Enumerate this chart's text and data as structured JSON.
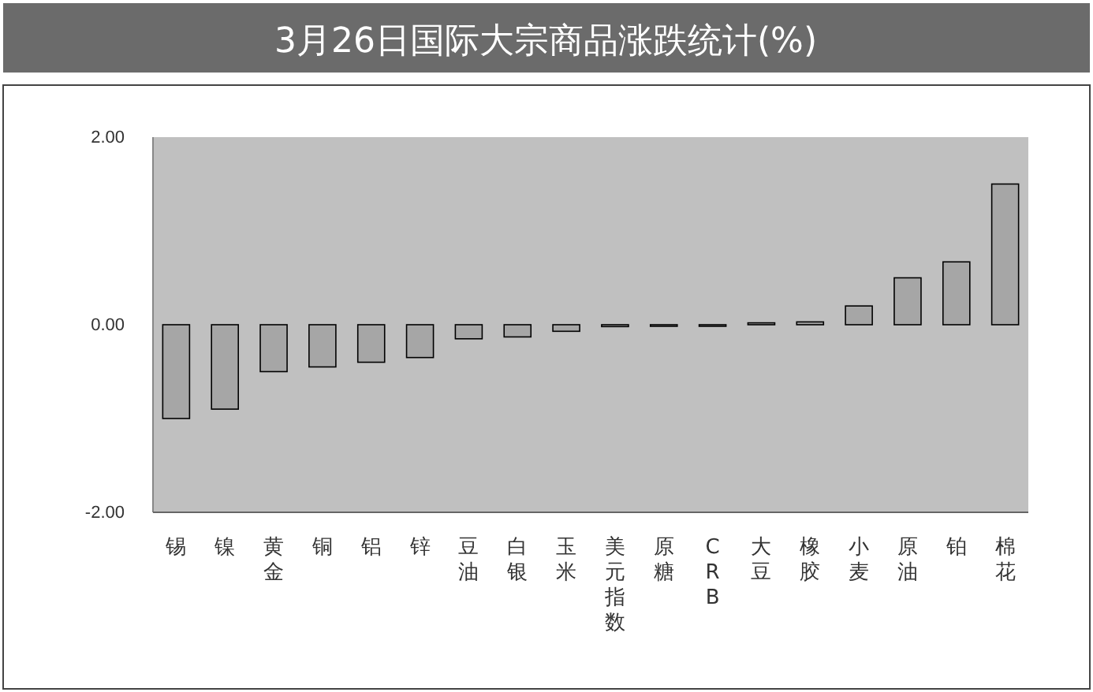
{
  "chart_data": {
    "type": "bar",
    "title": "3月26日国际大宗商品涨跌统计(%)",
    "categories": [
      "锡",
      "镍",
      "黄金",
      "铜",
      "铝",
      "锌",
      "豆油",
      "白银",
      "玉米",
      "美元指数",
      "原糖",
      "CRB",
      "大豆",
      "橡胶",
      "小麦",
      "原油",
      "铂",
      "棉花"
    ],
    "values": [
      -1.0,
      -0.9,
      -0.5,
      -0.45,
      -0.4,
      -0.35,
      -0.15,
      -0.13,
      -0.07,
      -0.02,
      0,
      0,
      0.02,
      0.03,
      0.2,
      0.5,
      0.67,
      1.5
    ],
    "color": "#a6a6a6",
    "ylim": [
      -2,
      2
    ],
    "yticks": [
      {
        "value": -2,
        "label": "-2.00"
      },
      {
        "value": 0,
        "label": "0.00"
      },
      {
        "value": 2,
        "label": "2.00"
      }
    ],
    "grid": false
  }
}
